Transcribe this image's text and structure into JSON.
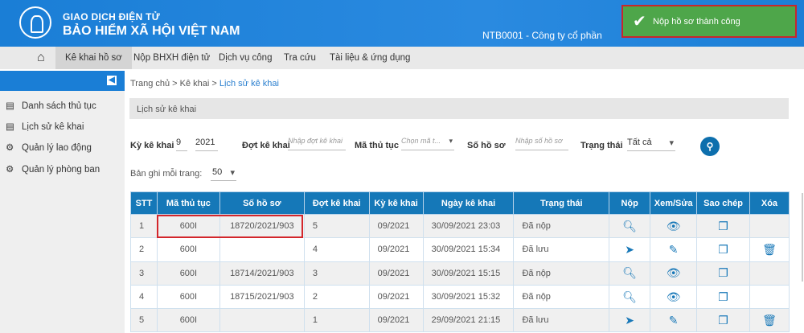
{
  "header": {
    "title_top": "GIAO DỊCH ĐIỆN TỬ",
    "title_main": "BẢO HIỂM XÃ HỘI VIỆT NAM",
    "user": "NTB0001 - Công ty cổ phần"
  },
  "toast": {
    "message": "Nộp hồ sơ thành công",
    "color": "#4ea64a"
  },
  "nav": {
    "items": [
      "Kê khai hồ sơ",
      "Nộp BHXH điện tử",
      "Dịch vụ công",
      "Tra cứu",
      "Tài liệu & ứng dụng"
    ]
  },
  "sidebar": {
    "items": [
      "Danh sách thủ tục",
      "Lịch sử kê khai",
      "Quản lý lao động",
      "Quản lý phòng ban"
    ]
  },
  "breadcrumb": [
    "Trang chủ",
    "Kê khai",
    "Lịch sử kê khai"
  ],
  "page_title": "Lịch sử kê khai",
  "filters": {
    "ky_label": "Kỳ kê khai",
    "ky_month": "9",
    "ky_year": "2021",
    "dot_label": "Đợt kê khai",
    "dot_placeholder": "Nhập đợt kê khai",
    "ma_label": "Mã thủ tục",
    "ma_placeholder": "Chọn mã t...",
    "so_label": "Số hồ sơ",
    "so_placeholder": "Nhập số hồ sơ",
    "tt_label": "Trạng thái",
    "tt_value": "Tất cả",
    "page_size_label": "Bản ghi mỗi trang:",
    "page_size": "50"
  },
  "table": {
    "headers": [
      "STT",
      "Mã thủ tục",
      "Số hồ sơ",
      "Đợt kê khai",
      "Kỳ kê khai",
      "Ngày kê khai",
      "Trạng thái",
      "Nộp",
      "Xem/Sửa",
      "Sao chép",
      "Xóa"
    ],
    "rows": [
      {
        "stt": "1",
        "ma": "600I",
        "so": "18720/2021/903",
        "dot": "5",
        "ky": "09/2021",
        "ngay": "30/09/2021 23:03",
        "tt": "Đã nộp"
      },
      {
        "stt": "2",
        "ma": "600I",
        "so": "",
        "dot": "4",
        "ky": "09/2021",
        "ngay": "30/09/2021 15:34",
        "tt": "Đã lưu"
      },
      {
        "stt": "3",
        "ma": "600I",
        "so": "18714/2021/903",
        "dot": "3",
        "ky": "09/2021",
        "ngay": "30/09/2021 15:15",
        "tt": "Đã nộp"
      },
      {
        "stt": "4",
        "ma": "600I",
        "so": "18715/2021/903",
        "dot": "2",
        "ky": "09/2021",
        "ngay": "30/09/2021 15:32",
        "tt": "Đã nộp"
      },
      {
        "stt": "5",
        "ma": "600I",
        "so": "",
        "dot": "1",
        "ky": "09/2021",
        "ngay": "29/09/2021 21:15",
        "tt": "Đã lưu"
      }
    ]
  }
}
